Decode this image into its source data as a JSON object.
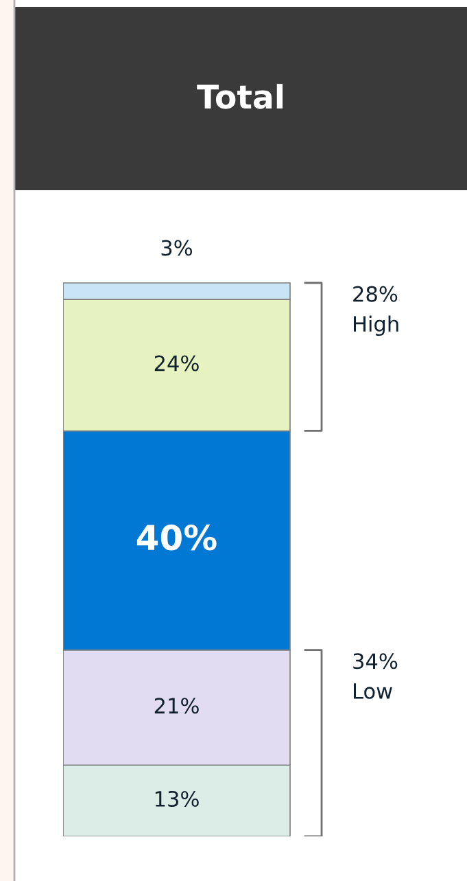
{
  "chart_data": {
    "type": "bar",
    "title": "Total",
    "categories": [
      null
    ],
    "stacked": true,
    "series": [
      {
        "color": "#dcede7",
        "values": [
          13
        ],
        "value_labels": [
          "13%"
        ]
      },
      {
        "color": "#e2dcf2",
        "values": [
          21
        ],
        "value_labels": [
          "21%"
        ]
      },
      {
        "color": "#0078d4",
        "values": [
          40
        ],
        "value_labels": [
          "40%"
        ]
      },
      {
        "color": "#e6f3c0",
        "values": [
          24
        ],
        "value_labels": [
          "24%"
        ]
      },
      {
        "color": "#c8e4f5",
        "values": [
          3
        ],
        "value_labels": [
          "3%"
        ]
      }
    ],
    "annotations": [
      "28%\nHigh",
      "34%\nLow"
    ]
  }
}
